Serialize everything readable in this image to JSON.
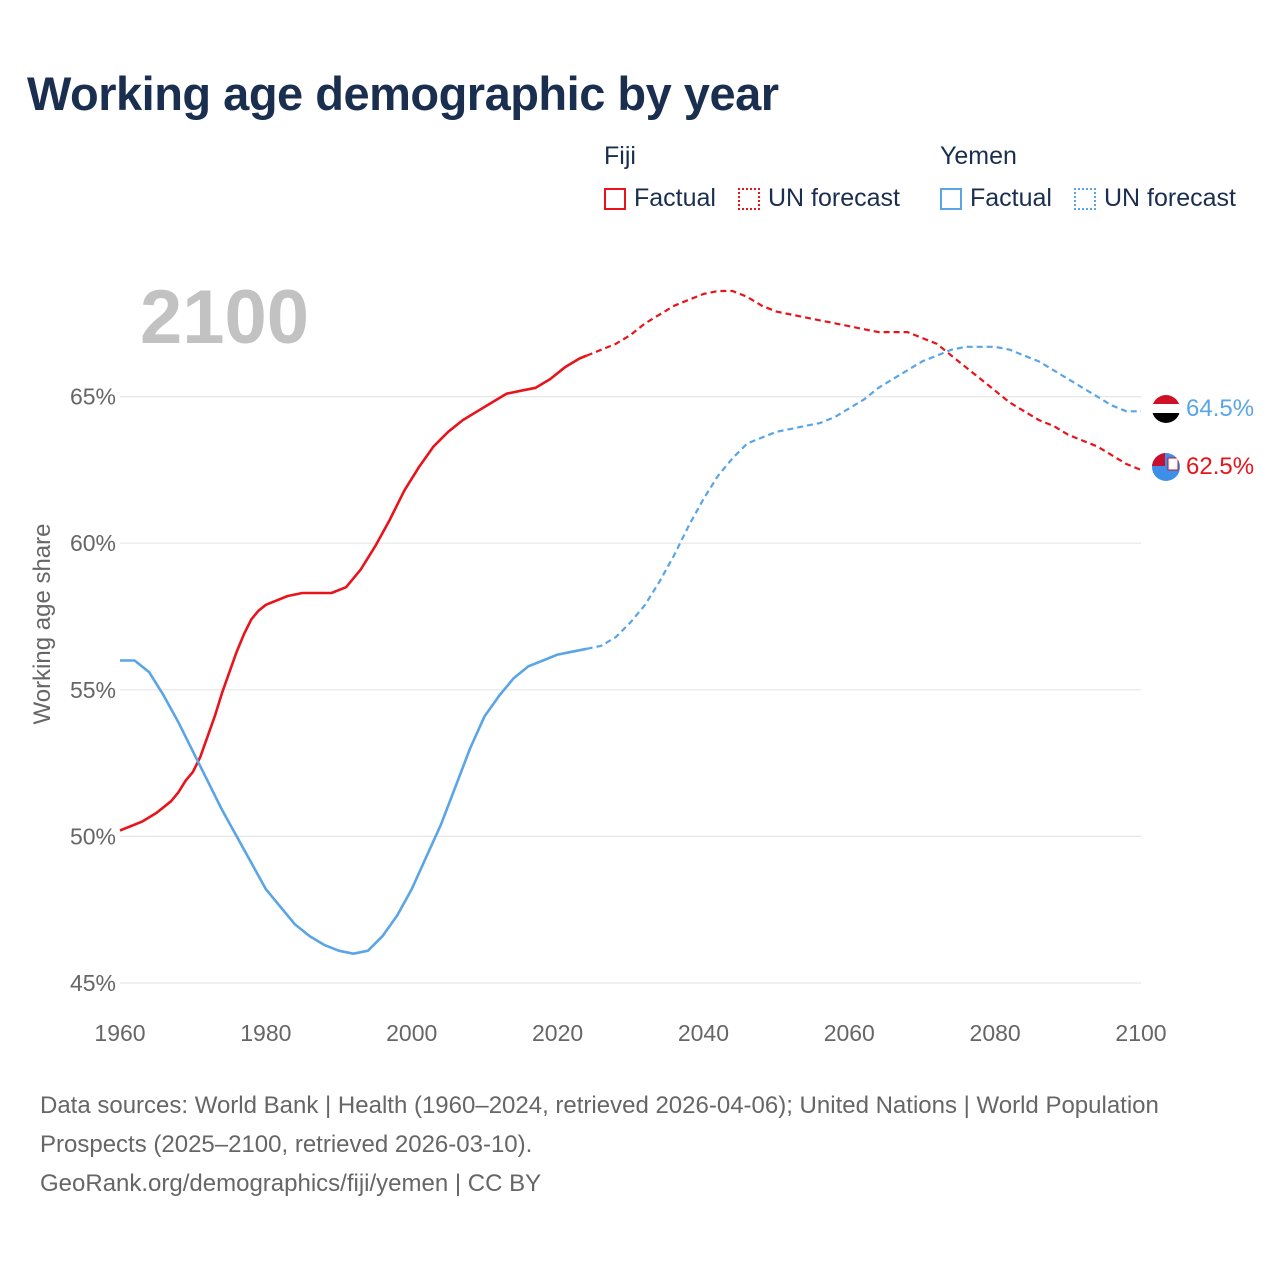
{
  "title": "Working age demographic by year",
  "legend": {
    "groups": [
      {
        "name": "Fiji",
        "items": [
          {
            "label": "Factual",
            "style": "solid",
            "color": "#e8141b"
          },
          {
            "label": "UN forecast",
            "style": "dotted",
            "color": "#e8141b"
          }
        ]
      },
      {
        "name": "Yemen",
        "items": [
          {
            "label": "Factual",
            "style": "solid",
            "color": "#5aa5e6"
          },
          {
            "label": "UN forecast",
            "style": "dotted",
            "color": "#5aa5e6"
          }
        ]
      }
    ]
  },
  "footer": {
    "sources": "Data sources: World Bank | Health (1960–2024, retrieved 2026-04-06); United Nations | World Population Prospects (2025–2100, retrieved 2026-03-10).",
    "credit": "GeoRank.org/demographics/fiji/yemen | CC BY"
  },
  "chart_data": {
    "type": "line",
    "title": "Working age demographic by year",
    "year_label": "2100",
    "xlabel": "",
    "ylabel": "Working age share",
    "xlim": [
      1960,
      2100
    ],
    "ylim": [
      45,
      70
    ],
    "xticks": [
      1960,
      1980,
      2000,
      2020,
      2040,
      2060,
      2080,
      2100
    ],
    "yticks": [
      45,
      50,
      55,
      60,
      65
    ],
    "ytick_labels": [
      "45%",
      "50%",
      "55%",
      "60%",
      "65%"
    ],
    "grid": true,
    "forecast_start_year": 2024,
    "series": [
      {
        "name": "Fiji",
        "color": "#e8141b",
        "end_label": "62.5%",
        "points": [
          [
            1960,
            50.2
          ],
          [
            1963,
            50.5
          ],
          [
            1965,
            50.8
          ],
          [
            1967,
            51.2
          ],
          [
            1968,
            51.5
          ],
          [
            1969,
            51.9
          ],
          [
            1970,
            52.2
          ],
          [
            1971,
            52.7
          ],
          [
            1972,
            53.4
          ],
          [
            1973,
            54.1
          ],
          [
            1974,
            54.9
          ],
          [
            1975,
            55.6
          ],
          [
            1976,
            56.3
          ],
          [
            1977,
            56.9
          ],
          [
            1978,
            57.4
          ],
          [
            1979,
            57.7
          ],
          [
            1980,
            57.9
          ],
          [
            1983,
            58.2
          ],
          [
            1985,
            58.3
          ],
          [
            1987,
            58.3
          ],
          [
            1989,
            58.3
          ],
          [
            1991,
            58.5
          ],
          [
            1993,
            59.1
          ],
          [
            1995,
            59.9
          ],
          [
            1997,
            60.8
          ],
          [
            1999,
            61.8
          ],
          [
            2001,
            62.6
          ],
          [
            2003,
            63.3
          ],
          [
            2005,
            63.8
          ],
          [
            2007,
            64.2
          ],
          [
            2009,
            64.5
          ],
          [
            2011,
            64.8
          ],
          [
            2013,
            65.1
          ],
          [
            2015,
            65.2
          ],
          [
            2017,
            65.3
          ],
          [
            2019,
            65.6
          ],
          [
            2021,
            66.0
          ],
          [
            2023,
            66.3
          ],
          [
            2024,
            66.4
          ],
          [
            2026,
            66.6
          ],
          [
            2028,
            66.8
          ],
          [
            2030,
            67.1
          ],
          [
            2032,
            67.5
          ],
          [
            2034,
            67.8
          ],
          [
            2036,
            68.1
          ],
          [
            2038,
            68.3
          ],
          [
            2040,
            68.5
          ],
          [
            2042,
            68.6
          ],
          [
            2044,
            68.6
          ],
          [
            2046,
            68.4
          ],
          [
            2048,
            68.1
          ],
          [
            2050,
            67.9
          ],
          [
            2052,
            67.8
          ],
          [
            2054,
            67.7
          ],
          [
            2056,
            67.6
          ],
          [
            2058,
            67.5
          ],
          [
            2060,
            67.4
          ],
          [
            2062,
            67.3
          ],
          [
            2064,
            67.2
          ],
          [
            2066,
            67.2
          ],
          [
            2068,
            67.2
          ],
          [
            2070,
            67.0
          ],
          [
            2072,
            66.8
          ],
          [
            2074,
            66.4
          ],
          [
            2076,
            66.0
          ],
          [
            2078,
            65.6
          ],
          [
            2080,
            65.2
          ],
          [
            2082,
            64.8
          ],
          [
            2084,
            64.5
          ],
          [
            2086,
            64.2
          ],
          [
            2088,
            64.0
          ],
          [
            2090,
            63.7
          ],
          [
            2092,
            63.5
          ],
          [
            2094,
            63.3
          ],
          [
            2096,
            63.0
          ],
          [
            2098,
            62.7
          ],
          [
            2100,
            62.5
          ]
        ]
      },
      {
        "name": "Yemen",
        "color": "#5aa5e6",
        "end_label": "64.5%",
        "points": [
          [
            1960,
            56.0
          ],
          [
            1962,
            56.0
          ],
          [
            1964,
            55.6
          ],
          [
            1966,
            54.8
          ],
          [
            1968,
            53.9
          ],
          [
            1970,
            52.9
          ],
          [
            1972,
            51.9
          ],
          [
            1974,
            50.9
          ],
          [
            1976,
            50.0
          ],
          [
            1978,
            49.1
          ],
          [
            1980,
            48.2
          ],
          [
            1982,
            47.6
          ],
          [
            1984,
            47.0
          ],
          [
            1986,
            46.6
          ],
          [
            1988,
            46.3
          ],
          [
            1990,
            46.1
          ],
          [
            1992,
            46.0
          ],
          [
            1994,
            46.1
          ],
          [
            1996,
            46.6
          ],
          [
            1998,
            47.3
          ],
          [
            2000,
            48.2
          ],
          [
            2002,
            49.3
          ],
          [
            2004,
            50.4
          ],
          [
            2006,
            51.7
          ],
          [
            2008,
            53.0
          ],
          [
            2010,
            54.1
          ],
          [
            2012,
            54.8
          ],
          [
            2014,
            55.4
          ],
          [
            2016,
            55.8
          ],
          [
            2018,
            56.0
          ],
          [
            2020,
            56.2
          ],
          [
            2022,
            56.3
          ],
          [
            2024,
            56.4
          ],
          [
            2026,
            56.5
          ],
          [
            2028,
            56.8
          ],
          [
            2030,
            57.3
          ],
          [
            2032,
            57.9
          ],
          [
            2034,
            58.7
          ],
          [
            2036,
            59.6
          ],
          [
            2038,
            60.6
          ],
          [
            2040,
            61.5
          ],
          [
            2042,
            62.3
          ],
          [
            2044,
            62.9
          ],
          [
            2046,
            63.4
          ],
          [
            2048,
            63.6
          ],
          [
            2050,
            63.8
          ],
          [
            2052,
            63.9
          ],
          [
            2054,
            64.0
          ],
          [
            2056,
            64.1
          ],
          [
            2058,
            64.3
          ],
          [
            2060,
            64.6
          ],
          [
            2062,
            64.9
          ],
          [
            2064,
            65.3
          ],
          [
            2066,
            65.6
          ],
          [
            2068,
            65.9
          ],
          [
            2070,
            66.2
          ],
          [
            2072,
            66.4
          ],
          [
            2074,
            66.6
          ],
          [
            2076,
            66.7
          ],
          [
            2078,
            66.7
          ],
          [
            2080,
            66.7
          ],
          [
            2082,
            66.6
          ],
          [
            2084,
            66.4
          ],
          [
            2086,
            66.2
          ],
          [
            2088,
            65.9
          ],
          [
            2090,
            65.6
          ],
          [
            2092,
            65.3
          ],
          [
            2094,
            65.0
          ],
          [
            2096,
            64.7
          ],
          [
            2098,
            64.5
          ],
          [
            2100,
            64.5
          ]
        ]
      }
    ]
  }
}
